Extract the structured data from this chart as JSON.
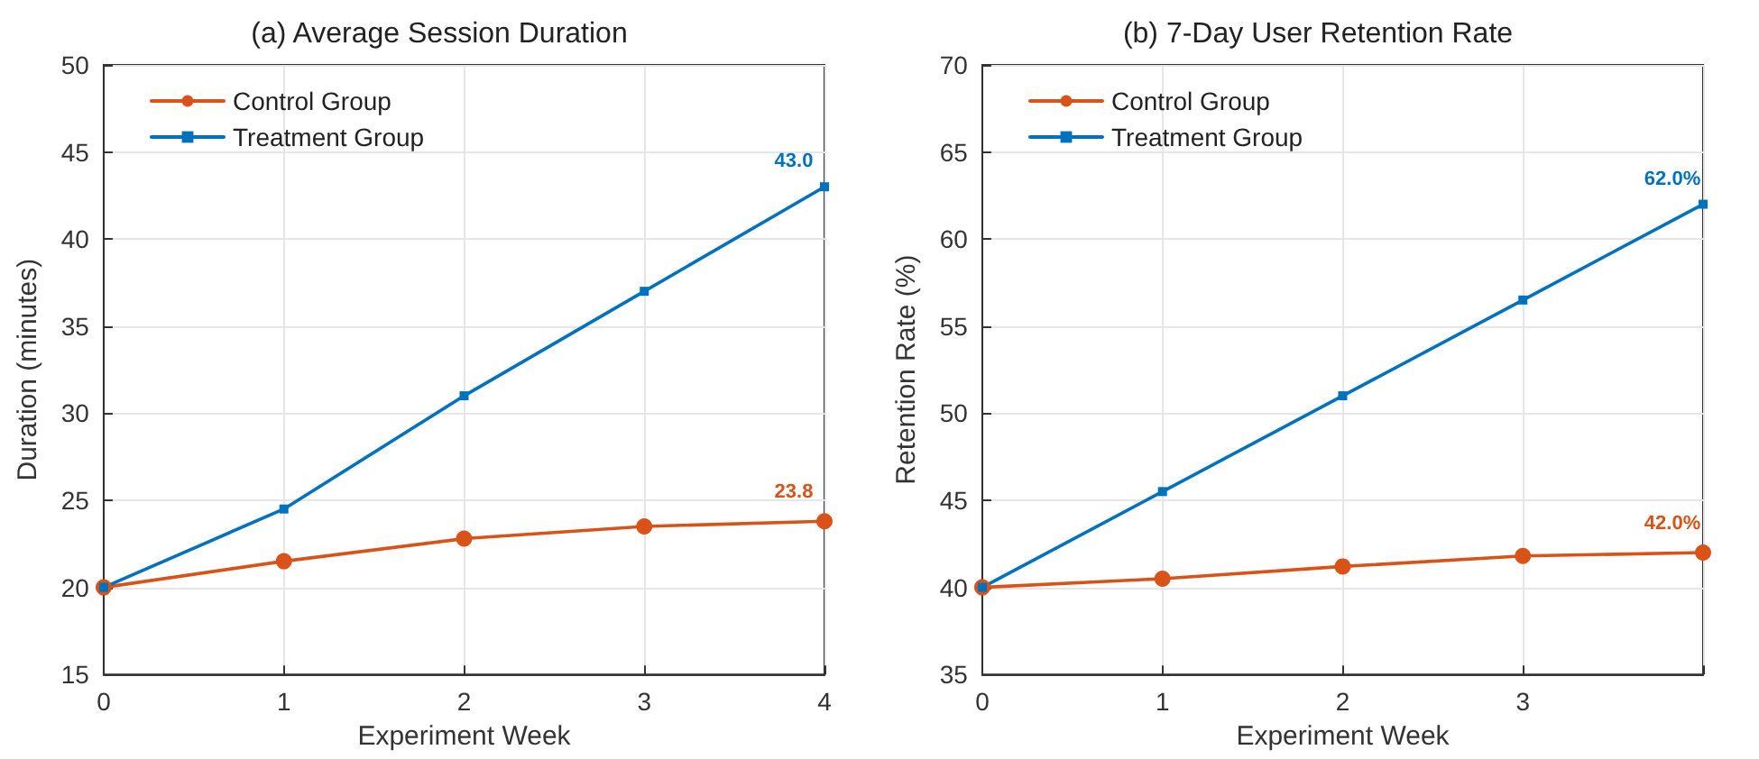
{
  "chart_data": [
    {
      "type": "line",
      "title": "(a) Average Session Duration",
      "xlabel": "Experiment Week",
      "ylabel": "Duration (minutes)",
      "x": [
        0,
        1,
        2,
        3,
        4
      ],
      "xlim": [
        0,
        4
      ],
      "xticks": [
        0,
        1,
        2,
        3,
        4
      ],
      "ylim": [
        15,
        50
      ],
      "yticks": [
        15,
        20,
        25,
        30,
        35,
        40,
        45,
        50
      ],
      "grid": true,
      "legend": "top left",
      "series": [
        {
          "name": "Control Group",
          "color": "#d95319",
          "marker": "circle",
          "values": [
            20,
            21.5,
            22.8,
            23.5,
            23.8
          ],
          "value_labels": [
            null,
            null,
            null,
            null,
            "23.8"
          ]
        },
        {
          "name": "Treatment Group",
          "color": "#0072bd",
          "marker": "square",
          "values": [
            20,
            24.5,
            31,
            37,
            43.0
          ],
          "value_labels": [
            null,
            null,
            null,
            null,
            "43.0"
          ]
        }
      ]
    },
    {
      "type": "line",
      "title": "(b) 7-Day User Retention Rate",
      "xlabel": "Experiment Week",
      "ylabel": "Retention Rate (%)",
      "x": [
        0,
        1,
        2,
        3,
        4
      ],
      "xlim": [
        0,
        4
      ],
      "xticks": [
        0,
        1,
        2,
        3,
        {
          "value": 4,
          "label": null
        }
      ],
      "ylim": [
        35,
        70
      ],
      "yticks": [
        35,
        40,
        45,
        50,
        55,
        60,
        65,
        70
      ],
      "grid": true,
      "legend": "top left",
      "series": [
        {
          "name": "Control Group",
          "color": "#d95319",
          "marker": "circle",
          "values": [
            40,
            40.5,
            41.2,
            41.8,
            42.0
          ],
          "value_labels": [
            null,
            null,
            null,
            null,
            "42.0%"
          ]
        },
        {
          "name": "Treatment Group",
          "color": "#0072bd",
          "marker": "square",
          "values": [
            40,
            45.5,
            51,
            56.5,
            62.0
          ],
          "value_labels": [
            null,
            null,
            null,
            null,
            "62.0%"
          ]
        }
      ]
    }
  ]
}
